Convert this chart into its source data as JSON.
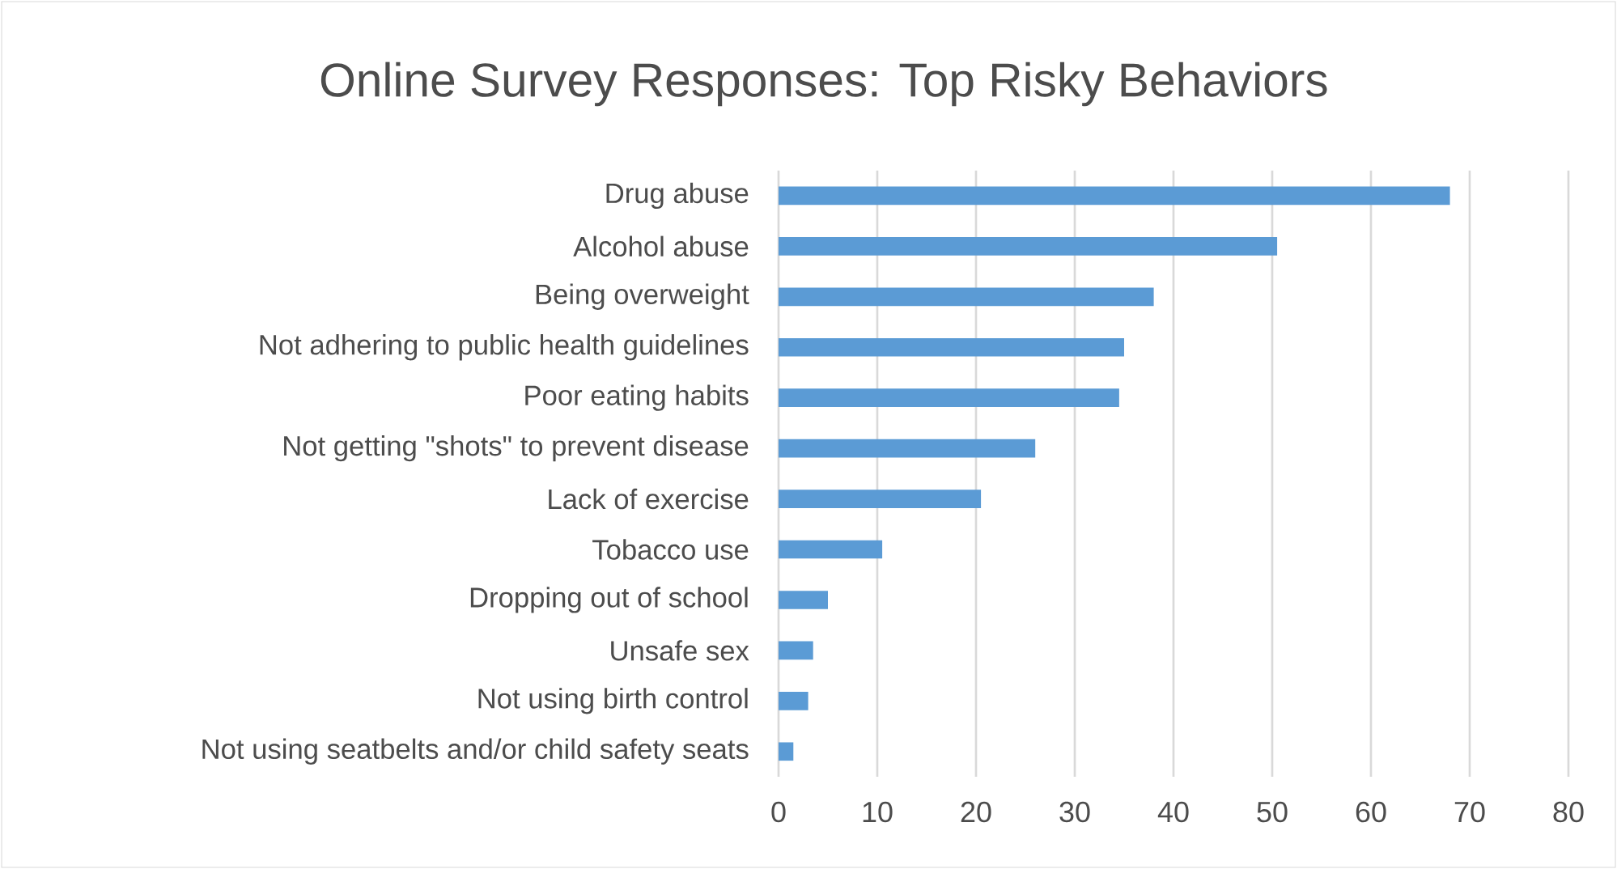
{
  "chart_data": {
    "type": "bar",
    "orientation": "horizontal",
    "title": "Online Survey Responses: Top Risky Behaviors",
    "categories": [
      "Drug abuse",
      "Alcohol abuse",
      "Being overweight",
      "Not adhering to public health guidelines",
      "Poor eating habits",
      "Not getting \"shots\" to prevent disease",
      "Lack of exercise",
      "Tobacco use",
      "Dropping out of school",
      "Unsafe sex",
      "Not using birth control",
      "Not using seatbelts and/or child safety seats"
    ],
    "values": [
      68,
      50.5,
      38,
      35,
      34.5,
      26,
      20.5,
      10.5,
      5,
      3.5,
      3,
      1.5
    ],
    "color": "#5b9bd5",
    "xlim": [
      0,
      80
    ],
    "xticks": [
      0,
      10,
      20,
      30,
      40,
      50,
      60,
      70,
      80
    ],
    "grid": "x"
  }
}
